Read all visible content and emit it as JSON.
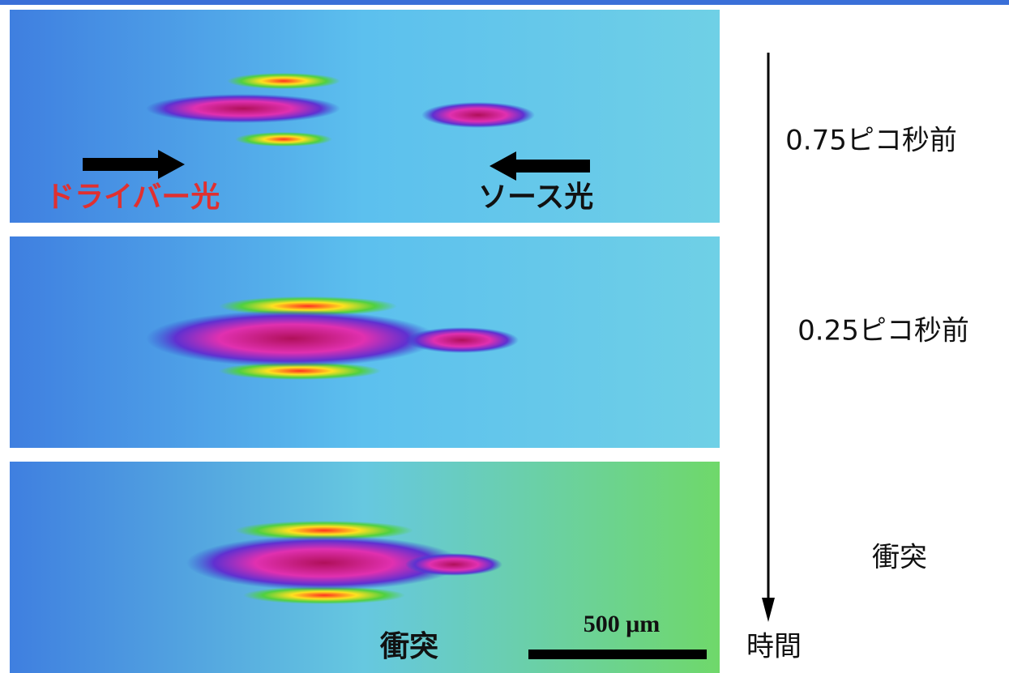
{
  "panels": [
    {
      "time_label": "0.75ピコ秒前",
      "driver_label": "ドライバー光",
      "source_label": "ソース光"
    },
    {
      "time_label": "0.25ピコ秒前"
    },
    {
      "time_label": "衝突",
      "collision_label": "衝突",
      "scale_bar_label": "500 μm"
    }
  ],
  "time_axis_label": "時間"
}
